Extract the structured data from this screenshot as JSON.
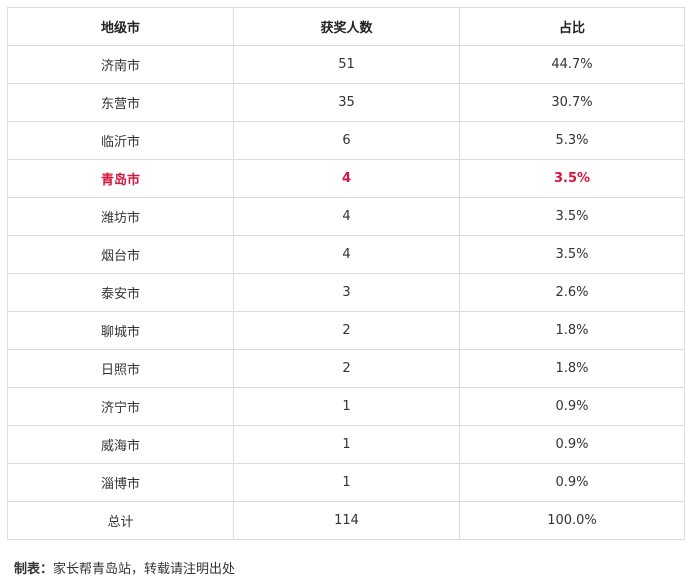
{
  "table": {
    "headers": [
      "地级市",
      "获奖人数",
      "占比"
    ],
    "rows": [
      [
        "济南市",
        "51",
        "44.7%"
      ],
      [
        "东营市",
        "35",
        "30.7%"
      ],
      [
        "临沂市",
        "6",
        "5.3%"
      ],
      [
        "青岛市",
        "4",
        "3.5%"
      ],
      [
        "潍坊市",
        "4",
        "3.5%"
      ],
      [
        "烟台市",
        "4",
        "3.5%"
      ],
      [
        "泰安市",
        "3",
        "2.6%"
      ],
      [
        "聊城市",
        "2",
        "1.8%"
      ],
      [
        "日照市",
        "2",
        "1.8%"
      ],
      [
        "济宁市",
        "1",
        "0.9%"
      ],
      [
        "威海市",
        "1",
        "0.9%"
      ],
      [
        "淄博市",
        "1",
        "0.9%"
      ]
    ],
    "total": [
      "总计",
      "114",
      "100.0%"
    ],
    "highlight_row": 3,
    "highlight_color": "#d6163c"
  },
  "caption": {
    "label": "制表：",
    "text": "家长帮青岛站，转载请注明出处"
  }
}
